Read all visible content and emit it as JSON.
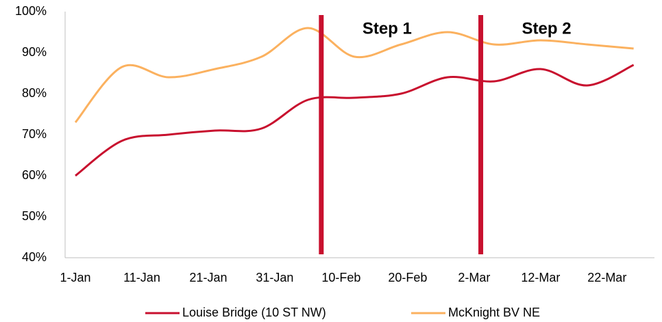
{
  "chart_data": {
    "type": "line",
    "x": [
      "1-Jan",
      "8-Jan",
      "15-Jan",
      "22-Jan",
      "29-Jan",
      "5-Feb",
      "12-Feb",
      "19-Feb",
      "26-Feb",
      "5-Mar",
      "12-Mar",
      "19-Mar",
      "26-Mar"
    ],
    "series": [
      {
        "name": "Louise Bridge (10 ST NW)",
        "color": "#c8102e",
        "values": [
          60,
          68.5,
          70,
          71,
          71.5,
          78.5,
          79,
          80,
          84,
          83,
          86,
          82,
          87
        ]
      },
      {
        "name": "McKnight BV NE",
        "color": "#fbb15f",
        "values": [
          73,
          86.5,
          84,
          86,
          89,
          96,
          89,
          92,
          95,
          92,
          93,
          92,
          91
        ]
      }
    ],
    "xlim": [
      "1-Jan",
      "28-Mar"
    ],
    "xticks": [
      "1-Jan",
      "11-Jan",
      "21-Jan",
      "31-Jan",
      "10-Feb",
      "20-Feb",
      "2-Mar",
      "12-Mar",
      "22-Mar"
    ],
    "ylim": [
      40,
      100
    ],
    "yticks": [
      {
        "value": 40,
        "label": "40%"
      },
      {
        "value": 50,
        "label": "50%"
      },
      {
        "value": 60,
        "label": "60%"
      },
      {
        "value": 70,
        "label": "70%"
      },
      {
        "value": 80,
        "label": "80%"
      },
      {
        "value": 90,
        "label": "90%"
      },
      {
        "value": 100,
        "label": "100%"
      }
    ],
    "annotations": [
      {
        "text": "Step 1",
        "x": "7-Feb",
        "color": "#c8102e"
      },
      {
        "text": "Step 2",
        "x": "3-Mar",
        "color": "#c8102e"
      }
    ],
    "grid": false,
    "legend": "bottom"
  }
}
